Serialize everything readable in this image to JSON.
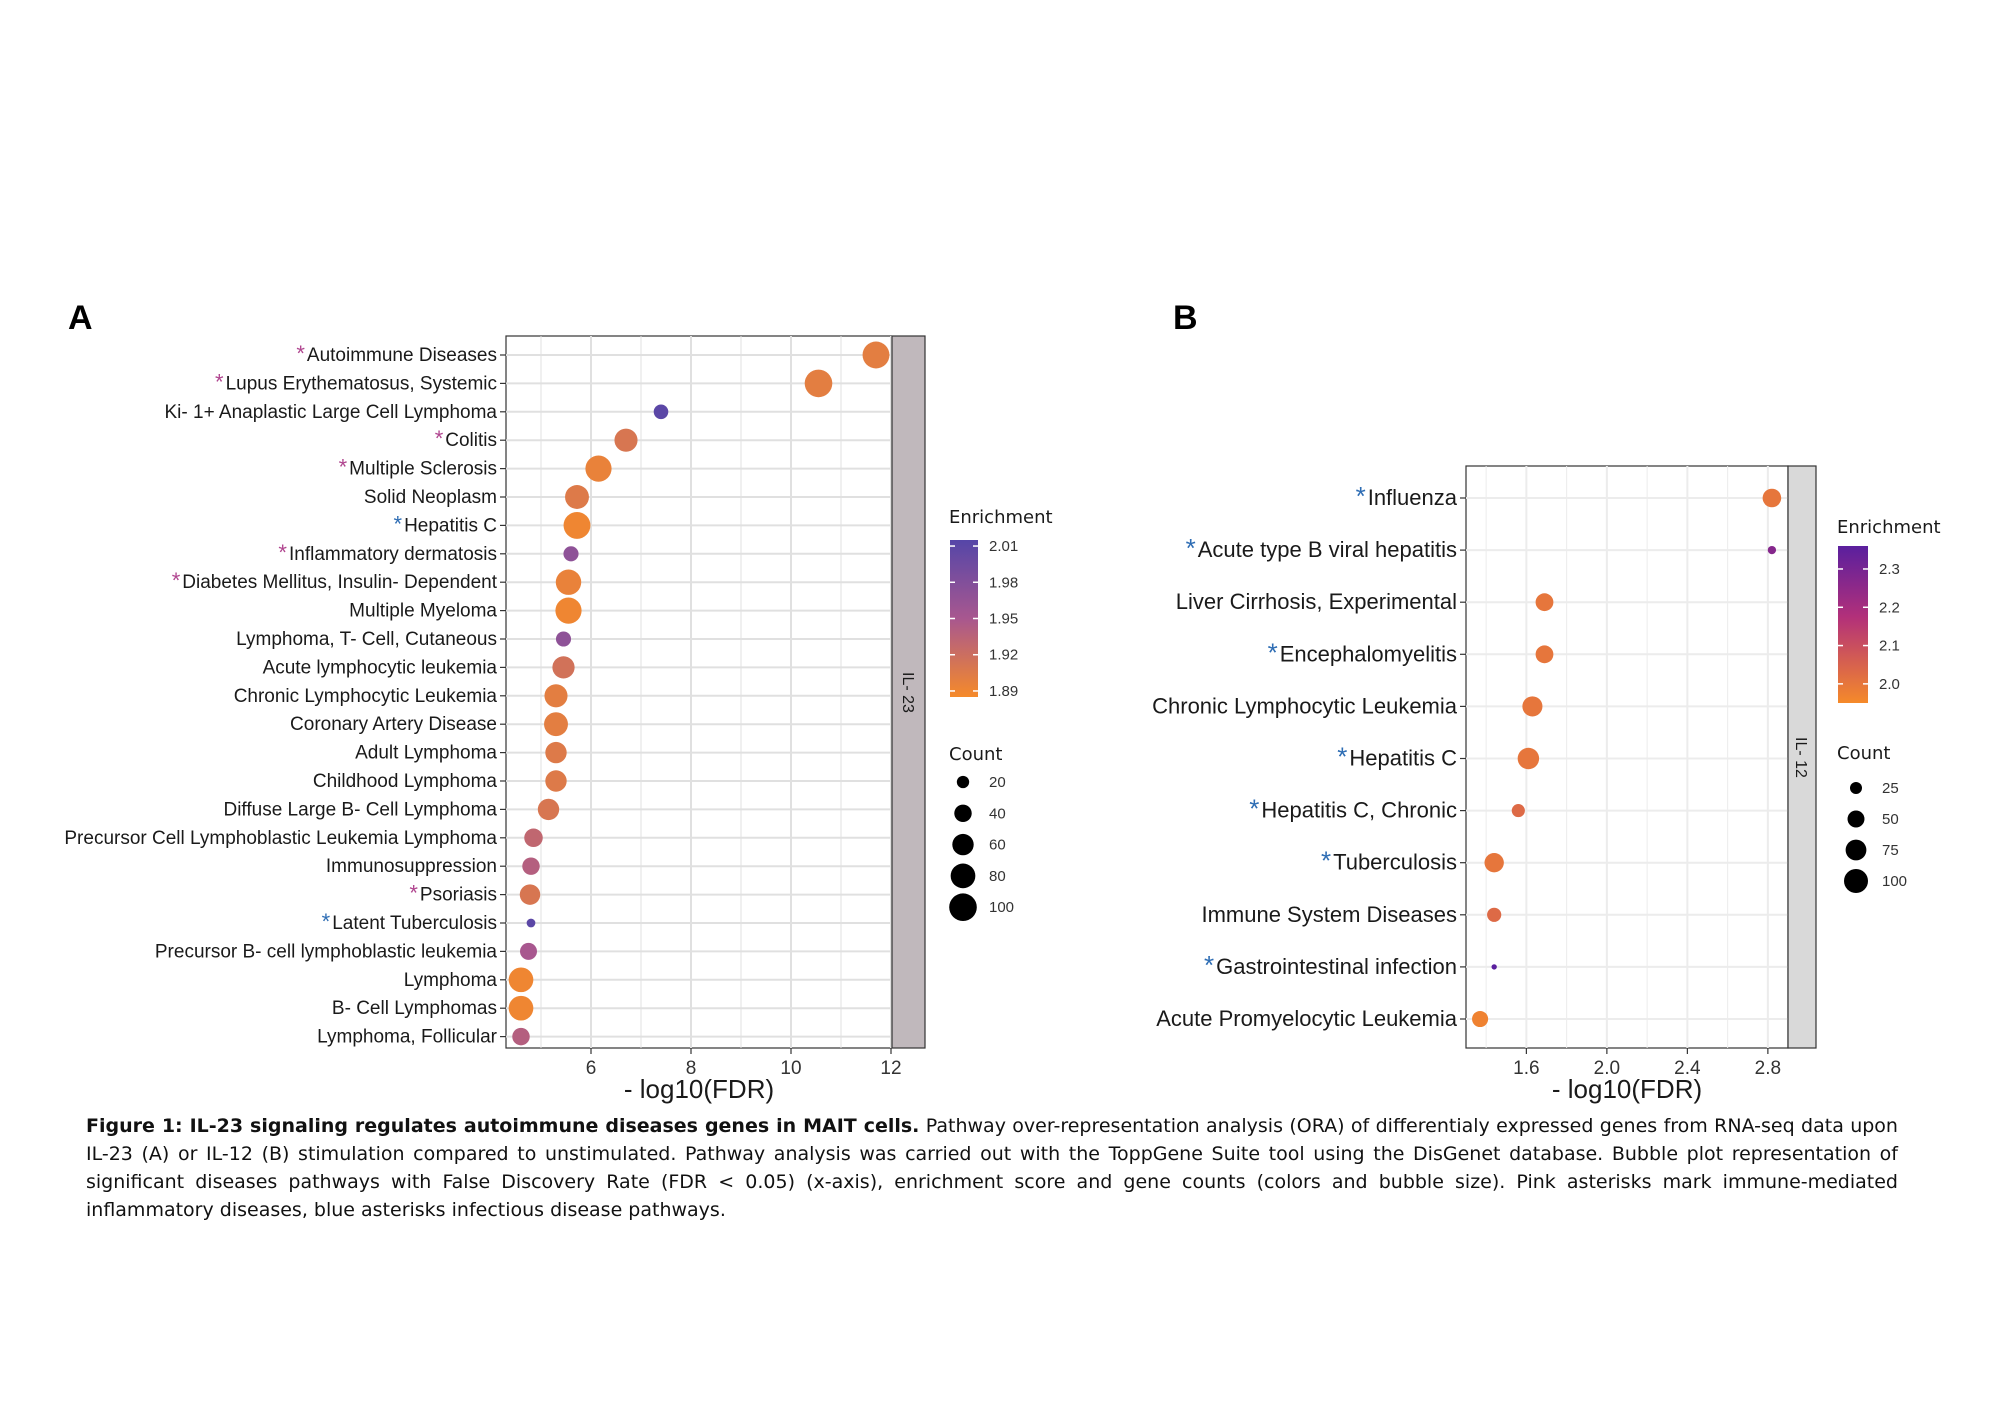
{
  "colors": {
    "pink_asterisk": "#b0458f",
    "blue_asterisk": "#2e6db4",
    "enrichment_high_A": "#5546a8",
    "enrichment_low_A": "#f58a2a",
    "enrichment_high_B": "#5a1f9e",
    "enrichment_low_B": "#f58a2a",
    "panel_grid": "#e0e0e0",
    "strip_bg_A": "#c0b8bc",
    "strip_bg_B": "#d9d9d9"
  },
  "chart_data": [
    {
      "panel": "A",
      "type": "scatter",
      "strip_label": "IL- 23",
      "xlabel": "- log10(FDR)",
      "xlim": [
        4.3,
        12.0
      ],
      "xticks": [
        6,
        8,
        10,
        12
      ],
      "categories": [
        {
          "label": "Autoimmune Diseases",
          "asterisk": "pink",
          "x": 11.7,
          "enrichment": 1.9,
          "count": 95
        },
        {
          "label": "Lupus Erythematosus, Systemic",
          "asterisk": "pink",
          "x": 10.55,
          "enrichment": 1.9,
          "count": 100
        },
        {
          "label": "Ki- 1+ Anaplastic Large Cell Lymphoma",
          "asterisk": "",
          "x": 7.4,
          "enrichment": 2.01,
          "count": 28
        },
        {
          "label": "Colitis",
          "asterisk": "pink",
          "x": 6.7,
          "enrichment": 1.91,
          "count": 70
        },
        {
          "label": "Multiple Sclerosis",
          "asterisk": "pink",
          "x": 6.15,
          "enrichment": 1.895,
          "count": 90
        },
        {
          "label": "Solid Neoplasm",
          "asterisk": "",
          "x": 5.72,
          "enrichment": 1.905,
          "count": 75
        },
        {
          "label": "Hepatitis C",
          "asterisk": "blue",
          "x": 5.72,
          "enrichment": 1.89,
          "count": 95
        },
        {
          "label": "Inflammatory dermatosis",
          "asterisk": "pink",
          "x": 5.6,
          "enrichment": 1.97,
          "count": 30
        },
        {
          "label": "Diabetes Mellitus, Insulin- Dependent",
          "asterisk": "pink",
          "x": 5.55,
          "enrichment": 1.895,
          "count": 85
        },
        {
          "label": "Multiple Myeloma",
          "asterisk": "",
          "x": 5.55,
          "enrichment": 1.89,
          "count": 90
        },
        {
          "label": "Lymphoma, T- Cell, Cutaneous",
          "asterisk": "",
          "x": 5.45,
          "enrichment": 1.97,
          "count": 30
        },
        {
          "label": "Acute lymphocytic leukemia",
          "asterisk": "",
          "x": 5.45,
          "enrichment": 1.915,
          "count": 65
        },
        {
          "label": "Chronic Lymphocytic Leukemia",
          "asterisk": "",
          "x": 5.3,
          "enrichment": 1.9,
          "count": 70
        },
        {
          "label": "Coronary Artery Disease",
          "asterisk": "",
          "x": 5.3,
          "enrichment": 1.9,
          "count": 75
        },
        {
          "label": "Adult Lymphoma",
          "asterisk": "",
          "x": 5.3,
          "enrichment": 1.905,
          "count": 60
        },
        {
          "label": "Childhood Lymphoma",
          "asterisk": "",
          "x": 5.3,
          "enrichment": 1.905,
          "count": 60
        },
        {
          "label": "Diffuse Large B- Cell Lymphoma",
          "asterisk": "",
          "x": 5.15,
          "enrichment": 1.91,
          "count": 60
        },
        {
          "label": "Precursor Cell Lymphoblastic Leukemia Lymphoma",
          "asterisk": "",
          "x": 4.85,
          "enrichment": 1.93,
          "count": 45
        },
        {
          "label": "Immunosuppression",
          "asterisk": "",
          "x": 4.8,
          "enrichment": 1.94,
          "count": 40
        },
        {
          "label": "Psoriasis",
          "asterisk": "pink",
          "x": 4.78,
          "enrichment": 1.91,
          "count": 55
        },
        {
          "label": "Latent Tuberculosis",
          "asterisk": "blue",
          "x": 4.8,
          "enrichment": 2.01,
          "count": 10
        },
        {
          "label": "Precursor B- cell lymphoblastic leukemia",
          "asterisk": "",
          "x": 4.75,
          "enrichment": 1.95,
          "count": 38
        },
        {
          "label": "Lymphoma",
          "asterisk": "",
          "x": 4.6,
          "enrichment": 1.89,
          "count": 80
        },
        {
          "label": "B- Cell Lymphomas",
          "asterisk": "",
          "x": 4.6,
          "enrichment": 1.89,
          "count": 80
        },
        {
          "label": "Lymphoma, Follicular",
          "asterisk": "",
          "x": 4.6,
          "enrichment": 1.94,
          "count": 40
        }
      ],
      "legend_color": {
        "title": "Enrichment",
        "ticks": [
          "2.01",
          "1.98",
          "1.95",
          "1.92",
          "1.89"
        ],
        "range": [
          1.885,
          2.015
        ]
      },
      "legend_size": {
        "title": "Count",
        "values": [
          20,
          40,
          60,
          80,
          100
        ]
      }
    },
    {
      "panel": "B",
      "type": "scatter",
      "strip_label": "IL- 12",
      "xlabel": "- log10(FDR)",
      "xlim": [
        1.3,
        2.9
      ],
      "xticks": [
        "1.6",
        "2.0",
        "2.4",
        "2.8"
      ],
      "categories": [
        {
          "label": "Influenza",
          "asterisk": "blue",
          "x": 2.82,
          "enrichment": 2.0,
          "count": 60
        },
        {
          "label": "Acute type B viral hepatitis",
          "asterisk": "blue",
          "x": 2.82,
          "enrichment": 2.27,
          "count": 12
        },
        {
          "label": "Liver Cirrhosis, Experimental",
          "asterisk": "",
          "x": 1.69,
          "enrichment": 2.0,
          "count": 55
        },
        {
          "label": "Encephalomyelitis",
          "asterisk": "blue",
          "x": 1.69,
          "enrichment": 2.0,
          "count": 55
        },
        {
          "label": "Chronic Lymphocytic Leukemia",
          "asterisk": "",
          "x": 1.63,
          "enrichment": 2.0,
          "count": 70
        },
        {
          "label": "Hepatitis C",
          "asterisk": "blue",
          "x": 1.61,
          "enrichment": 2.0,
          "count": 80
        },
        {
          "label": "Hepatitis C, Chronic",
          "asterisk": "blue",
          "x": 1.56,
          "enrichment": 2.03,
          "count": 30
        },
        {
          "label": "Tuberculosis",
          "asterisk": "blue",
          "x": 1.44,
          "enrichment": 2.0,
          "count": 65
        },
        {
          "label": "Immune System Diseases",
          "asterisk": "",
          "x": 1.44,
          "enrichment": 2.03,
          "count": 35
        },
        {
          "label": "Gastrointestinal infection",
          "asterisk": "blue",
          "x": 1.44,
          "enrichment": 2.36,
          "count": 5
        },
        {
          "label": "Acute Promyelocytic Leukemia",
          "asterisk": "",
          "x": 1.37,
          "enrichment": 1.97,
          "count": 45
        }
      ],
      "legend_color": {
        "title": "Enrichment",
        "ticks": [
          "2.3",
          "2.2",
          "2.1",
          "2.0"
        ],
        "range": [
          1.95,
          2.36
        ]
      },
      "legend_size": {
        "title": "Count",
        "values": [
          25,
          50,
          75,
          100
        ]
      }
    }
  ],
  "panel_letters": {
    "a": "A",
    "b": "B"
  },
  "asterisk_glyph": "*",
  "caption": {
    "bold": "Figure 1: IL-23 signaling regulates autoimmune diseases genes in MAIT cells.",
    "text": " Pathway over-representation analysis (ORA) of differentialy expressed genes from RNA-seq data upon IL-23 (A) or IL-12 (B) stimulation compared to unstimulated. Pathway analysis was carried out with the ToppGene Suite tool using the DisGenet database. Bubble plot representation of significant diseases pathways with False Discovery Rate (FDR < 0.05) (x-axis), enrichment score and gene counts (colors and bubble size). Pink asterisks mark immune-mediated inflammatory diseases, blue asterisks infectious disease pathways."
  }
}
